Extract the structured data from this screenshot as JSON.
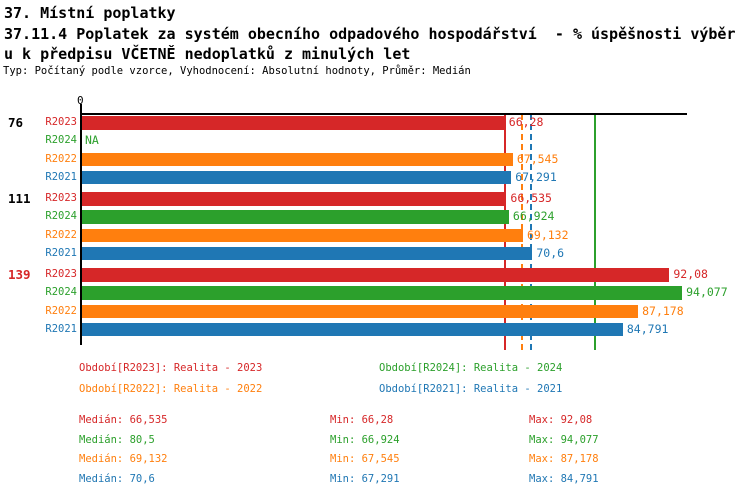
{
  "header": {
    "title_line1": "37. Místní poplatky",
    "title_line2": "37.11.4 Poplatek za systém obecního odpadového hospodářství  - % úspěšnosti výběr",
    "title_line3": "u k předpisu VČETNĚ nedoplatků z minulých let",
    "subtitle": "Typ: Počítaný podle vzorce, Vyhodnocení: Absolutní hodnoty, Průměr: Medián"
  },
  "colors": {
    "R2023": "#d62728",
    "R2024": "#2ca02c",
    "R2022": "#ff7f0e",
    "R2021": "#1f77b4",
    "axis": "#000000",
    "text": "#000000",
    "background": "#ffffff"
  },
  "chart_data": {
    "type": "bar",
    "orientation": "horizontal",
    "title": "37.11.4 Poplatek za systém obecního odpadového hospodářství - % úspěšnosti výběru k předpisu VČETNĚ nedoplatků z minulých let",
    "xlim": [
      0,
      95
    ],
    "x_axis_tick_labels": [
      "0"
    ],
    "grid": false,
    "na_text": "NA",
    "series_order": [
      "R2023",
      "R2024",
      "R2022",
      "R2021"
    ],
    "groups": [
      {
        "label": "76",
        "label_color": "#000000",
        "bars": [
          {
            "series": "R2023",
            "value": 66.28,
            "display": "66,28"
          },
          {
            "series": "R2024",
            "value": null,
            "display": "NA"
          },
          {
            "series": "R2022",
            "value": 67.545,
            "display": "67,545"
          },
          {
            "series": "R2021",
            "value": 67.291,
            "display": "67,291"
          }
        ]
      },
      {
        "label": "111",
        "label_color": "#000000",
        "bars": [
          {
            "series": "R2023",
            "value": 66.535,
            "display": "66,535"
          },
          {
            "series": "R2024",
            "value": 66.924,
            "display": "66,924"
          },
          {
            "series": "R2022",
            "value": 69.132,
            "display": "69,132"
          },
          {
            "series": "R2021",
            "value": 70.6,
            "display": "70,6"
          }
        ]
      },
      {
        "label": "139",
        "label_color": "#d62728",
        "bars": [
          {
            "series": "R2023",
            "value": 92.08,
            "display": "92,08"
          },
          {
            "series": "R2024",
            "value": 94.077,
            "display": "94,077"
          },
          {
            "series": "R2022",
            "value": 87.178,
            "display": "87,178"
          },
          {
            "series": "R2021",
            "value": 84.791,
            "display": "84,791"
          }
        ]
      }
    ],
    "median_lines": [
      {
        "series": "R2023",
        "value": 66.535,
        "line_style": "solid"
      },
      {
        "series": "R2024",
        "value": 80.5,
        "line_style": "solid"
      },
      {
        "series": "R2022",
        "value": 69.132,
        "line_style": "dashed"
      },
      {
        "series": "R2021",
        "value": 70.6,
        "line_style": "dashed"
      }
    ]
  },
  "legend": {
    "items": [
      {
        "series": "R2023",
        "label": "Období[R2023]: Realita - 2023"
      },
      {
        "series": "R2024",
        "label": "Období[R2024]: Realita - 2024"
      },
      {
        "series": "R2022",
        "label": "Období[R2022]: Realita - 2022"
      },
      {
        "series": "R2021",
        "label": "Období[R2021]: Realita - 2021"
      }
    ]
  },
  "stats": {
    "column_labels": {
      "median": "Medián",
      "min": "Min",
      "max": "Max"
    },
    "rows": [
      {
        "series": "R2023",
        "median": "66,535",
        "min": "66,28",
        "max": "92,08"
      },
      {
        "series": "R2024",
        "median": "80,5",
        "min": "66,924",
        "max": "94,077"
      },
      {
        "series": "R2022",
        "median": "69,132",
        "min": "67,545",
        "max": "87,178"
      },
      {
        "series": "R2021",
        "median": "70,6",
        "min": "67,291",
        "max": "84,791"
      }
    ]
  }
}
